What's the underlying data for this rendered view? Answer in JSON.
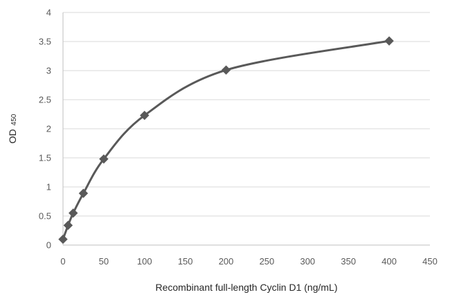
{
  "chart_data": {
    "type": "line",
    "title": "",
    "xlabel": "Recombinant full-length Cyclin D1 (ng/mL)",
    "ylabel_main": "OD",
    "ylabel_sub": "450",
    "xlim": [
      0,
      450
    ],
    "ylim": [
      0,
      4
    ],
    "x_ticks": [
      "0",
      "50",
      "100",
      "150",
      "200",
      "250",
      "300",
      "350",
      "400",
      "450"
    ],
    "y_ticks": [
      "0",
      "0.5",
      "1",
      "1.5",
      "2",
      "2.5",
      "3",
      "3.5",
      "4"
    ],
    "grid": "horizontal",
    "legend": "none",
    "line_color": "#595959",
    "marker": "diamond",
    "series": [
      {
        "x": [
          0,
          6.25,
          12.5,
          25,
          50,
          100,
          200,
          400
        ],
        "y": [
          0.1,
          0.34,
          0.55,
          0.89,
          1.48,
          2.23,
          3.01,
          3.51
        ]
      }
    ]
  }
}
